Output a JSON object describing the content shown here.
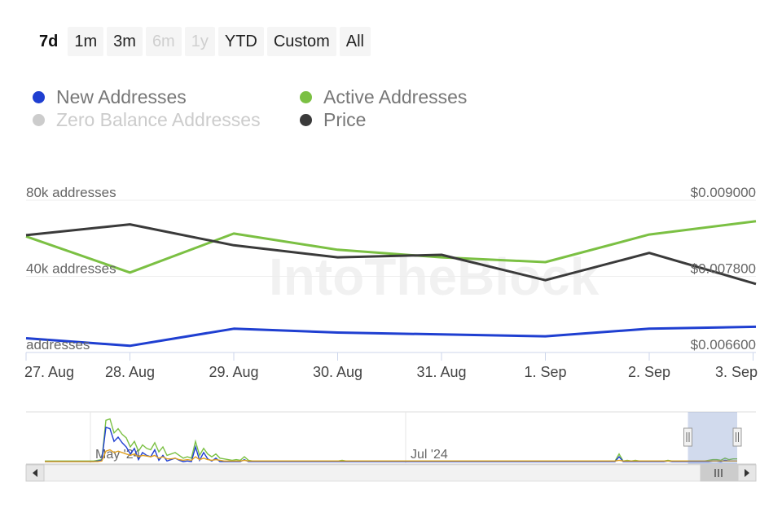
{
  "range_selector": {
    "buttons": [
      {
        "label": "7d",
        "state": "active"
      },
      {
        "label": "1m",
        "state": "normal"
      },
      {
        "label": "3m",
        "state": "normal"
      },
      {
        "label": "6m",
        "state": "disabled"
      },
      {
        "label": "1y",
        "state": "disabled"
      },
      {
        "label": "YTD",
        "state": "normal"
      },
      {
        "label": "Custom",
        "state": "normal"
      },
      {
        "label": "All",
        "state": "normal"
      }
    ]
  },
  "legend": {
    "items": [
      {
        "label": "New Addresses",
        "color": "#1f3fd1",
        "visible": true
      },
      {
        "label": "Active Addresses",
        "color": "#7bc043",
        "visible": true
      },
      {
        "label": "Zero Balance Addresses",
        "color": "#cccccc",
        "visible": false
      },
      {
        "label": "Price",
        "color": "#3a3a3a",
        "visible": true
      }
    ]
  },
  "watermark": "IntoTheBlock",
  "chart_data": {
    "type": "line",
    "categories": [
      "27. Aug",
      "28. Aug",
      "29. Aug",
      "30. Aug",
      "31. Aug",
      "1. Sep",
      "2. Sep",
      "3. Sep"
    ],
    "left_axis": {
      "tick_labels": [
        "80k addresses",
        "40k addresses",
        "addresses"
      ],
      "tick_values": [
        80000,
        40000,
        0
      ],
      "range": [
        0,
        80000
      ]
    },
    "right_axis": {
      "tick_labels": [
        "$0.009000",
        "$0.007800",
        "$0.006600"
      ],
      "tick_values": [
        0.009,
        0.0078,
        0.0066
      ],
      "range": [
        0.0066,
        0.009
      ]
    },
    "series": [
      {
        "name": "New Addresses",
        "axis": "left",
        "color": "#1f3fd1",
        "x": [
          0,
          1,
          2,
          3,
          4,
          5,
          6,
          7.2
        ],
        "values": [
          7500,
          3500,
          12500,
          10500,
          9500,
          8500,
          12500,
          13500
        ]
      },
      {
        "name": "Active Addresses",
        "axis": "left",
        "color": "#7bc043",
        "x": [
          0,
          1,
          2,
          3,
          4,
          5,
          6,
          7.2
        ],
        "values": [
          61000,
          42000,
          62500,
          54000,
          50000,
          47500,
          62000,
          69000
        ]
      },
      {
        "name": "Price",
        "axis": "right",
        "color": "#3a3a3a",
        "x": [
          0,
          1,
          2,
          3,
          4,
          5,
          6,
          7.2
        ],
        "values": [
          0.00845,
          0.00862,
          0.00829,
          0.0081,
          0.00814,
          0.00774,
          0.00817,
          0.00768
        ]
      }
    ],
    "grid": true,
    "legend_placement": "top-left"
  },
  "navigator": {
    "labels": [
      "May '24",
      "Jul '24"
    ],
    "series": [
      {
        "name": "Active Addresses",
        "color": "#7bc043",
        "values": [
          2,
          2,
          2,
          2,
          2,
          2,
          2,
          2,
          2,
          2,
          2,
          2,
          2,
          3,
          4,
          60,
          62,
          42,
          48,
          40,
          35,
          22,
          30,
          16,
          25,
          20,
          18,
          28,
          15,
          22,
          10,
          12,
          14,
          10,
          6,
          8,
          6,
          30,
          10,
          20,
          12,
          8,
          12,
          6,
          5,
          4,
          3,
          4,
          3,
          8,
          3,
          2,
          2,
          2,
          2,
          2,
          2,
          2,
          2,
          2,
          2,
          2,
          2,
          2,
          2,
          2,
          2,
          2,
          2,
          2,
          2,
          2,
          2,
          3,
          2,
          2,
          2,
          2,
          2,
          2,
          2,
          2,
          2,
          2,
          2,
          2,
          2,
          2,
          2,
          2,
          2,
          2,
          2,
          2,
          2,
          2,
          2,
          2,
          2,
          2,
          2,
          2,
          2,
          2,
          2,
          2,
          2,
          2,
          2,
          2,
          2,
          2,
          2,
          2,
          2,
          2,
          2,
          2,
          2,
          2,
          2,
          2,
          2,
          2,
          2,
          2,
          2,
          2,
          2,
          2,
          2,
          2,
          2,
          2,
          2,
          2,
          2,
          2,
          2,
          2,
          2,
          12,
          2,
          3,
          2,
          3,
          2,
          2,
          2,
          2,
          2,
          2,
          2,
          3,
          2,
          2,
          2,
          2,
          2,
          2,
          2,
          2,
          2,
          3,
          4,
          4,
          3,
          6,
          4,
          5,
          5
        ]
      },
      {
        "name": "New Addresses",
        "color": "#1f3fd1",
        "values": [
          1,
          1,
          1,
          1,
          1,
          1,
          1,
          1,
          1,
          1,
          1,
          1,
          1,
          2,
          3,
          50,
          48,
          30,
          36,
          28,
          22,
          12,
          20,
          4,
          14,
          10,
          8,
          18,
          3,
          10,
          2,
          4,
          6,
          3,
          1,
          2,
          1,
          22,
          3,
          14,
          5,
          2,
          6,
          1,
          1,
          1,
          1,
          1,
          1,
          4,
          1,
          1,
          1,
          1,
          1,
          1,
          1,
          1,
          1,
          1,
          1,
          1,
          1,
          1,
          1,
          1,
          1,
          1,
          1,
          1,
          1,
          1,
          1,
          1,
          1,
          1,
          1,
          1,
          1,
          1,
          1,
          1,
          1,
          1,
          1,
          1,
          1,
          1,
          1,
          1,
          1,
          1,
          1,
          1,
          1,
          1,
          1,
          1,
          1,
          1,
          1,
          1,
          1,
          1,
          1,
          1,
          1,
          1,
          1,
          1,
          1,
          1,
          1,
          1,
          1,
          1,
          1,
          1,
          1,
          1,
          1,
          1,
          1,
          1,
          1,
          1,
          1,
          1,
          1,
          1,
          1,
          1,
          1,
          1,
          1,
          1,
          1,
          1,
          1,
          1,
          1,
          8,
          1,
          1,
          1,
          1,
          1,
          1,
          1,
          1,
          1,
          1,
          1,
          2,
          1,
          1,
          1,
          1,
          1,
          1,
          1,
          1,
          1,
          1,
          2,
          2,
          1,
          3,
          2,
          2,
          2
        ]
      },
      {
        "name": "Price",
        "color": "#e0a020",
        "values": [
          1,
          1,
          1,
          1,
          1,
          1,
          1,
          1,
          1,
          1,
          1,
          1,
          1,
          1,
          2,
          16,
          18,
          14,
          16,
          14,
          12,
          10,
          12,
          8,
          10,
          9,
          8,
          10,
          6,
          8,
          5,
          5,
          6,
          4,
          3,
          4,
          3,
          8,
          4,
          6,
          4,
          3,
          4,
          3,
          2,
          2,
          2,
          2,
          2,
          3,
          2,
          2,
          2,
          2,
          2,
          2,
          2,
          2,
          2,
          2,
          2,
          2,
          2,
          2,
          2,
          2,
          2,
          2,
          2,
          2,
          2,
          2,
          2,
          2,
          2,
          2,
          2,
          2,
          2,
          2,
          2,
          2,
          2,
          2,
          2,
          2,
          2,
          2,
          2,
          2,
          2,
          2,
          2,
          2,
          2,
          2,
          2,
          2,
          2,
          2,
          2,
          2,
          2,
          2,
          2,
          2,
          2,
          2,
          2,
          2,
          2,
          2,
          2,
          2,
          2,
          2,
          2,
          2,
          2,
          2,
          2,
          2,
          2,
          2,
          2,
          2,
          2,
          2,
          2,
          2,
          2,
          2,
          2,
          2,
          2,
          2,
          2,
          2,
          2,
          2,
          2,
          3,
          2,
          2,
          2,
          2,
          2,
          2,
          2,
          2,
          2,
          2,
          2,
          2,
          2,
          2,
          2,
          2,
          2,
          2,
          2,
          2,
          2,
          2,
          2,
          2,
          2,
          2,
          2,
          2,
          2
        ]
      }
    ],
    "selected_window": [
      0.97,
      1.0
    ]
  }
}
